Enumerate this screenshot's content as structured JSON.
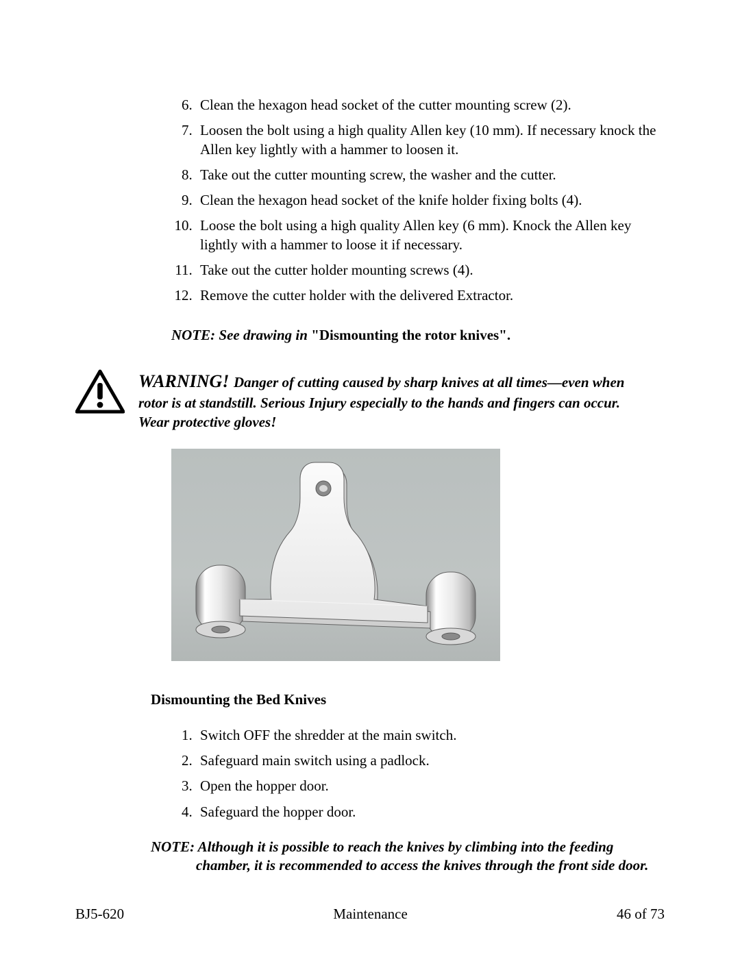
{
  "list1": {
    "start": 6,
    "items": [
      "Clean the hexagon head socket of the cutter mounting screw (2).",
      "Loosen the bolt using a high quality Allen key (10 mm). If necessary knock the Allen key lightly with a hammer to loosen it.",
      "Take out the cutter mounting screw, the washer and the cutter.",
      "Clean the hexagon head socket of the knife holder fixing bolts (4).",
      "Loose the bolt using a high quality Allen key (6 mm). Knock the Allen key lightly with a hammer to loose it if necessary.",
      "Take out the cutter holder mounting screws (4).",
      "Remove the cutter holder with the delivered Extractor."
    ]
  },
  "note1": {
    "italic": "NOTE: See drawing in ",
    "bold": "\"Dismounting the rotor knives\"."
  },
  "warning": {
    "head": "WARNING! ",
    "body": "Danger of cutting caused by sharp knives at all times—even when rotor is at standstill.  Serious Injury especially to the hands and fingers can occur.  Wear protective gloves!",
    "icon_stroke": "#000000",
    "icon_fill": "#ffffff"
  },
  "figure": {
    "bg_top": "#b9bfbe",
    "part_face": "#f2f2f2",
    "part_shadow": "#cfcfcf",
    "part_dark": "#bdbdbd",
    "outline": "#636363",
    "hole": "#8a8a8a"
  },
  "section_title": "Dismounting the Bed Knives",
  "list2": {
    "start": 1,
    "items": [
      "Switch OFF the shredder at the main switch.",
      "Safeguard main switch using a padlock.",
      "Open the hopper door.",
      "Safeguard the hopper door."
    ]
  },
  "note2": {
    "line1": "NOTE: Although it is possible to reach the knives by climbing into the feeding",
    "line2": "chamber, it is recommended to access the knives through the front side door."
  },
  "footer": {
    "left": "BJ5-620",
    "center": "Maintenance",
    "right": "46 of 73"
  }
}
